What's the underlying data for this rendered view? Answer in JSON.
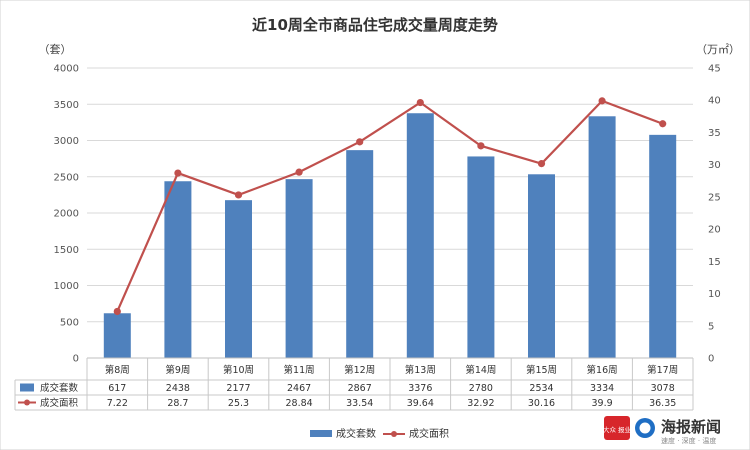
{
  "chart_data": {
    "type": "bar",
    "title": "近10周全市商品住宅成交量周度走势",
    "left_unit": "（套）",
    "right_unit": "（万㎡）",
    "categories": [
      "第8周",
      "第9周",
      "第10周",
      "第11周",
      "第12周",
      "第13周",
      "第14周",
      "第15周",
      "第16周",
      "第17周"
    ],
    "series": [
      {
        "name": "成交套数",
        "type": "bar",
        "axis": "left",
        "color": "#4f81bd",
        "values": [
          617,
          2438,
          2177,
          2467,
          2867,
          3376,
          2780,
          2534,
          3334,
          3078
        ],
        "labels": [
          "617",
          "2438",
          "2177",
          "2467",
          "2867",
          "3376",
          "2780",
          "2534",
          "3334",
          "3078"
        ]
      },
      {
        "name": "成交面积",
        "type": "line",
        "axis": "right",
        "color": "#c0504d",
        "values": [
          7.22,
          28.7,
          25.3,
          28.84,
          33.54,
          39.64,
          32.92,
          30.16,
          39.9,
          36.35
        ],
        "labels": [
          "7.22",
          "28.7",
          "25.3",
          "28.84",
          "33.54",
          "39.64",
          "32.92",
          "30.16",
          "39.9",
          "36.35"
        ]
      }
    ],
    "y_left": {
      "min": 0,
      "max": 4000,
      "ticks": [
        "0",
        "500",
        "1000",
        "1500",
        "2000",
        "2500",
        "3000",
        "3500",
        "4000"
      ]
    },
    "y_right": {
      "min": 0,
      "max": 45,
      "ticks": [
        "0",
        "5",
        "10",
        "15",
        "20",
        "25",
        "30",
        "35",
        "40",
        "45"
      ]
    },
    "grid": true,
    "data_table": true,
    "legend_position": "bottom"
  },
  "watermark": {
    "icon_text": "大众 报业",
    "name": "海报新闻",
    "tagline": "速度 · 深度 · 温度"
  }
}
